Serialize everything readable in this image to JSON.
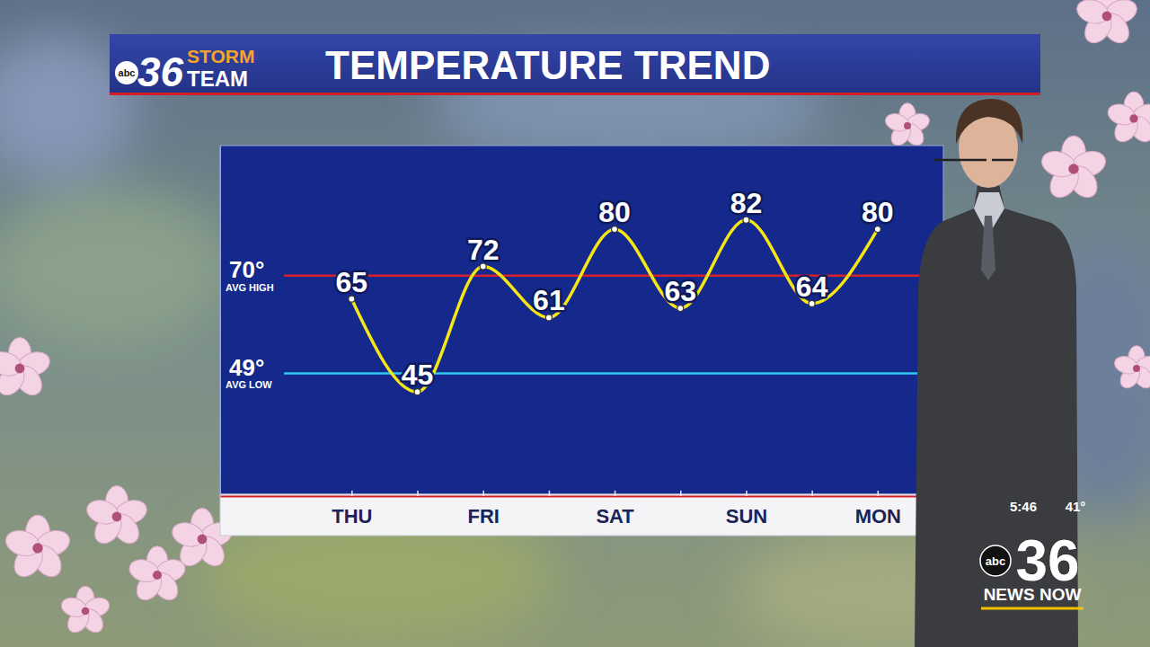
{
  "header": {
    "logo_network": "abc",
    "logo_number": "36",
    "logo_line1": "STORM",
    "logo_line2": "TEAM",
    "title": "TEMPERATURE TREND"
  },
  "chart_data": {
    "type": "line",
    "categories": [
      "THU",
      null,
      "FRI",
      null,
      "SAT",
      null,
      "SUN",
      null,
      "MON"
    ],
    "values": [
      65,
      45,
      72,
      61,
      80,
      63,
      82,
      64,
      80
    ],
    "color": "#f5e614",
    "marker": "circle",
    "data_labels": true,
    "grid": false,
    "ylim": [
      23,
      98
    ],
    "yticks": [
      {
        "value": 49,
        "label": "49°"
      },
      {
        "value": 70,
        "label": "70°"
      }
    ],
    "reference_lines": [
      {
        "value": 70,
        "label": "AVG HIGH",
        "color": "#d8202c"
      },
      {
        "value": 49,
        "label": "AVG LOW",
        "color": "#2ec8f2"
      }
    ]
  },
  "overlay": {
    "time": "5:46",
    "temperature": "41°",
    "logo_network": "abc",
    "logo_number": "36",
    "logo_text": "NEWS NOW"
  }
}
